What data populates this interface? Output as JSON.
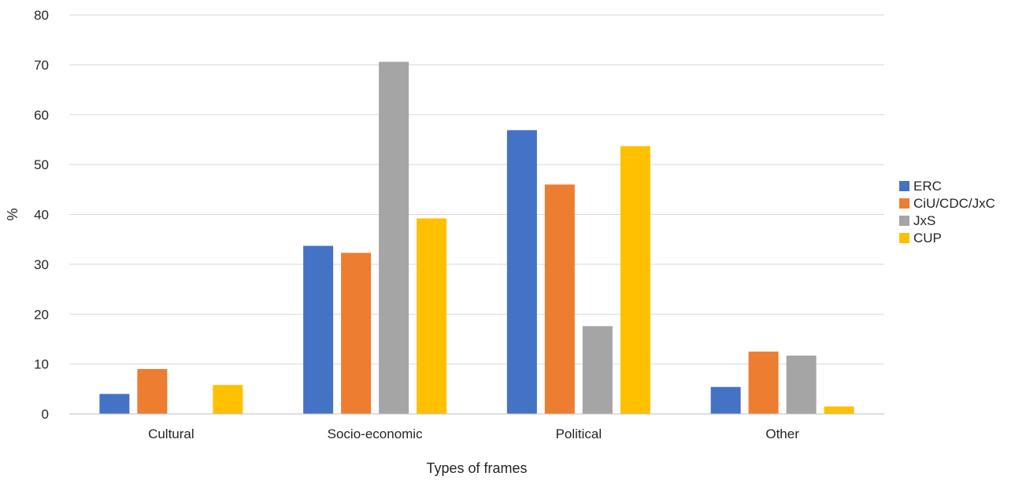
{
  "chart_data": {
    "type": "bar",
    "title": "",
    "xlabel": "Types of frames",
    "ylabel": "%",
    "ylim": [
      0,
      80
    ],
    "yticks": [
      0,
      10,
      20,
      30,
      40,
      50,
      60,
      70,
      80
    ],
    "grid": true,
    "legend_position": "right",
    "categories": [
      "Cultural",
      "Socio-economic",
      "Political",
      "Other"
    ],
    "series": [
      {
        "name": "ERC",
        "color": "#4472C4",
        "values": [
          4.0,
          33.7,
          56.9,
          5.4
        ]
      },
      {
        "name": "CiU/CDC/JxC",
        "color": "#ED7D31",
        "values": [
          9.0,
          32.3,
          46.0,
          12.5
        ]
      },
      {
        "name": "JxS",
        "color": "#A5A5A5",
        "values": [
          0,
          70.6,
          17.6,
          11.7
        ]
      },
      {
        "name": "CUP",
        "color": "#FFC000",
        "values": [
          5.8,
          39.2,
          53.7,
          1.5
        ]
      }
    ]
  }
}
